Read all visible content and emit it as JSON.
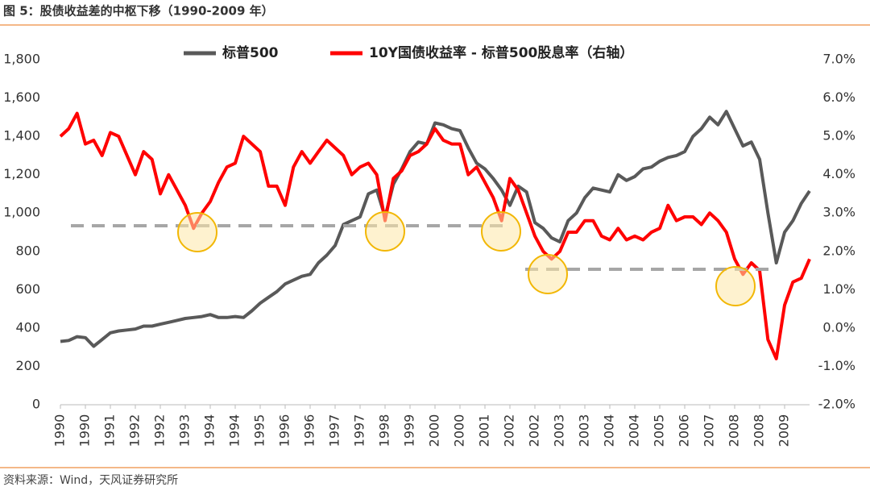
{
  "chart_data": {
    "type": "line",
    "title": "图 5：股债收益差的中枢下移（1990-2009 年）",
    "source": "资料来源：Wind，天风证券研究所",
    "categories": [
      "1990",
      null,
      null,
      "1990",
      null,
      null,
      "1991",
      null,
      null,
      "1992",
      null,
      null,
      "1992",
      null,
      null,
      "1993",
      null,
      null,
      "1994",
      null,
      null,
      "1994",
      null,
      null,
      "1995",
      null,
      null,
      "1996",
      null,
      null,
      "1996",
      null,
      null,
      "1997",
      null,
      null,
      "1997",
      null,
      null,
      "1998",
      null,
      null,
      "1999",
      null,
      null,
      "2000",
      null,
      null,
      "2000",
      null,
      null,
      "2001",
      null,
      null,
      "2002",
      null,
      null,
      "2002",
      null,
      null,
      "2003",
      null,
      null,
      "2003",
      null,
      null,
      "2004",
      null,
      null,
      "2004",
      null,
      null,
      "2005",
      null,
      null,
      "2006",
      null,
      null,
      "2007",
      null,
      null,
      "2008",
      null,
      null,
      "2008",
      null,
      null,
      "2009",
      null,
      null,
      null
    ],
    "series": [
      {
        "name": "标普500",
        "color": "#595959",
        "values": [
          330,
          335,
          355,
          350,
          305,
          340,
          375,
          385,
          390,
          395,
          410,
          410,
          420,
          430,
          440,
          450,
          455,
          460,
          470,
          455,
          455,
          460,
          455,
          490,
          530,
          560,
          590,
          630,
          650,
          670,
          680,
          740,
          780,
          830,
          940,
          960,
          980,
          1100,
          1120,
          980,
          1150,
          1230,
          1320,
          1370,
          1360,
          1470,
          1460,
          1440,
          1430,
          1340,
          1260,
          1230,
          1180,
          1120,
          1040,
          1140,
          1110,
          950,
          920,
          870,
          850,
          960,
          1000,
          1080,
          1130,
          1120,
          1110,
          1200,
          1170,
          1190,
          1230,
          1240,
          1270,
          1290,
          1300,
          1320,
          1400,
          1440,
          1500,
          1460,
          1530,
          1440,
          1350,
          1370,
          1280,
          1000,
          740,
          900,
          960,
          1050,
          1115
        ]
      },
      {
        "name": "10Y国债收益率 - 标普500股息率（右轴）",
        "color": "#ff0000",
        "axis": "y2",
        "values": [
          5.0,
          5.2,
          5.6,
          4.8,
          4.9,
          4.5,
          5.1,
          5.0,
          4.5,
          4.0,
          4.6,
          4.4,
          3.5,
          4.0,
          3.6,
          3.2,
          2.6,
          3.0,
          3.3,
          3.8,
          4.2,
          4.3,
          5.0,
          4.8,
          4.6,
          3.7,
          3.7,
          3.2,
          4.2,
          4.6,
          4.3,
          4.6,
          4.9,
          4.7,
          4.5,
          4.0,
          4.2,
          4.3,
          4.0,
          2.8,
          3.9,
          4.1,
          4.5,
          4.6,
          4.8,
          5.2,
          4.9,
          4.8,
          4.8,
          4.0,
          4.2,
          3.8,
          3.4,
          2.8,
          3.9,
          3.6,
          3.0,
          2.4,
          2.0,
          1.8,
          2.0,
          2.5,
          2.5,
          2.8,
          2.8,
          2.4,
          2.3,
          2.6,
          2.3,
          2.4,
          2.3,
          2.5,
          2.6,
          3.2,
          2.8,
          2.9,
          2.9,
          2.7,
          3.0,
          2.8,
          2.5,
          1.8,
          1.4,
          1.7,
          1.5,
          -0.3,
          -0.8,
          0.6,
          1.2,
          1.3,
          1.8
        ]
      }
    ],
    "ylim": [
      0,
      1800
    ],
    "yticks": [
      0,
      200,
      400,
      600,
      800,
      {
        "value": 1000,
        "label": "1,000"
      },
      {
        "value": 1200,
        "label": "1,200"
      },
      {
        "value": 1400,
        "label": "1,400"
      },
      {
        "value": 1600,
        "label": "1,600"
      },
      {
        "value": 1800,
        "label": "1,800"
      }
    ],
    "y2lim": [
      -2,
      7
    ],
    "y2ticks": [
      {
        "value": -2,
        "label": "-2.0%"
      },
      {
        "value": -1,
        "label": "-1.0%"
      },
      {
        "value": 0,
        "label": "0.0%"
      },
      {
        "value": 1,
        "label": "1.0%"
      },
      {
        "value": 2,
        "label": "2.0%"
      },
      {
        "value": 3,
        "label": "3.0%"
      },
      {
        "value": 4,
        "label": "4.0%"
      },
      {
        "value": 5,
        "label": "5.0%"
      },
      {
        "value": 6,
        "label": "6.0%"
      },
      {
        "value": 7,
        "label": "7.0%"
      }
    ],
    "legend": "top"
  }
}
